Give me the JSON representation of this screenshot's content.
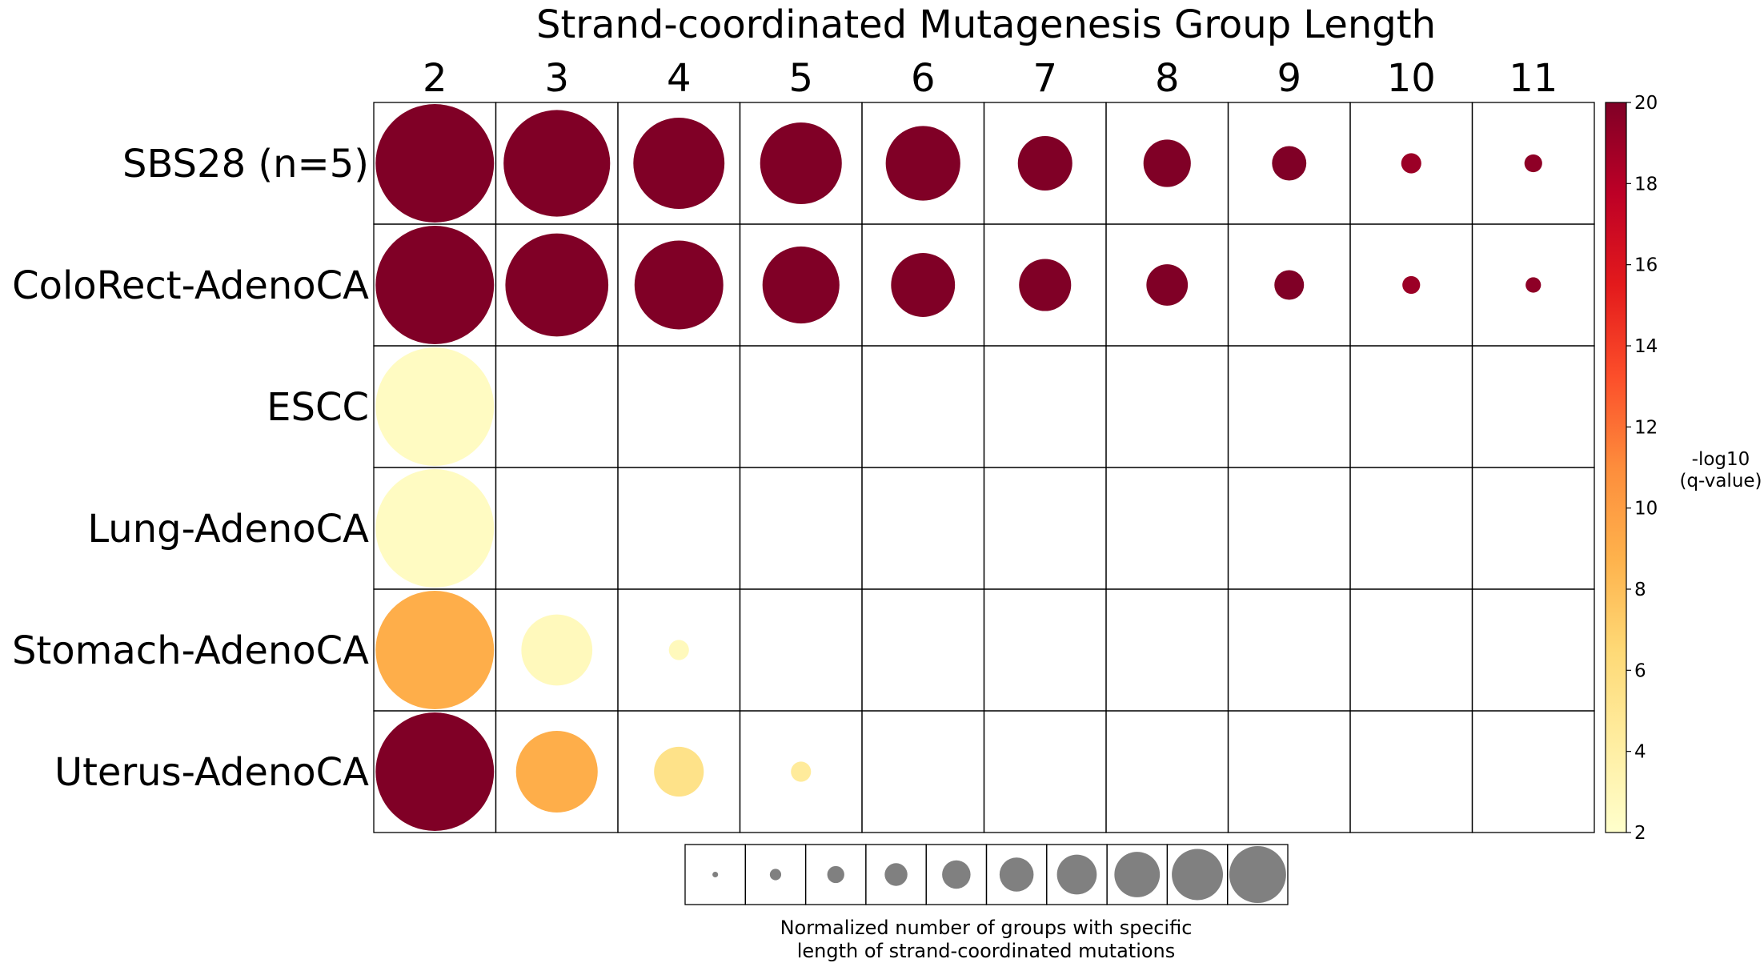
{
  "chart_data": {
    "type": "bubble-heatmap",
    "title": "Strand-coordinated Mutagenesis Group Length",
    "x_categories": [
      "2",
      "3",
      "4",
      "5",
      "6",
      "7",
      "8",
      "9",
      "10",
      "11"
    ],
    "y_categories": [
      "SBS28 (n=5)",
      "ColoRect-AdenoCA",
      "ESCC",
      "Lung-AdenoCA",
      "Stomach-AdenoCA",
      "Uterus-AdenoCA"
    ],
    "size_values_normalized": [
      [
        1.0,
        0.9,
        0.77,
        0.69,
        0.63,
        0.46,
        0.4,
        0.29,
        0.17,
        0.15
      ],
      [
        1.0,
        0.87,
        0.75,
        0.65,
        0.54,
        0.44,
        0.35,
        0.25,
        0.15,
        0.13
      ],
      [
        1.0,
        null,
        null,
        null,
        null,
        null,
        null,
        null,
        null,
        null
      ],
      [
        1.0,
        null,
        null,
        null,
        null,
        null,
        null,
        null,
        null,
        null
      ],
      [
        1.0,
        0.6,
        0.17,
        null,
        null,
        null,
        null,
        null,
        null,
        null
      ],
      [
        1.0,
        0.69,
        0.42,
        0.17,
        null,
        null,
        null,
        null,
        null,
        null
      ]
    ],
    "color_values_neglog10_q": [
      [
        20,
        20,
        20,
        20,
        20,
        20,
        20,
        20,
        19,
        19.5
      ],
      [
        20,
        20,
        20,
        20,
        20,
        20,
        20,
        20,
        19,
        19.5
      ],
      [
        2.5,
        null,
        null,
        null,
        null,
        null,
        null,
        null,
        null,
        null
      ],
      [
        2.5,
        null,
        null,
        null,
        null,
        null,
        null,
        null,
        null,
        null
      ],
      [
        9,
        2.8,
        2.8,
        null,
        null,
        null,
        null,
        null,
        null,
        null
      ],
      [
        20,
        9,
        5.5,
        4.5,
        null,
        null,
        null,
        null,
        null,
        null
      ]
    ],
    "colorbar": {
      "label_line1": "-log10",
      "label_line2": "(q-value)",
      "range": [
        2,
        20
      ],
      "ticks": [
        "2",
        "4",
        "6",
        "8",
        "10",
        "12",
        "14",
        "16",
        "18",
        "20"
      ],
      "colormap": "YlOrRd",
      "colormap_stops": [
        "#ffffcc",
        "#ffeda0",
        "#fed976",
        "#feb24c",
        "#fd8d3c",
        "#fc4e2a",
        "#e31a1c",
        "#bd0026",
        "#800026"
      ]
    },
    "size_legend": {
      "values": [
        0.1,
        0.2,
        0.3,
        0.4,
        0.5,
        0.6,
        0.7,
        0.8,
        0.9,
        1.0
      ],
      "color": "#808080",
      "caption_line1": "Normalized number of groups with specific",
      "caption_line2": "length of strand-coordinated mutations"
    }
  }
}
